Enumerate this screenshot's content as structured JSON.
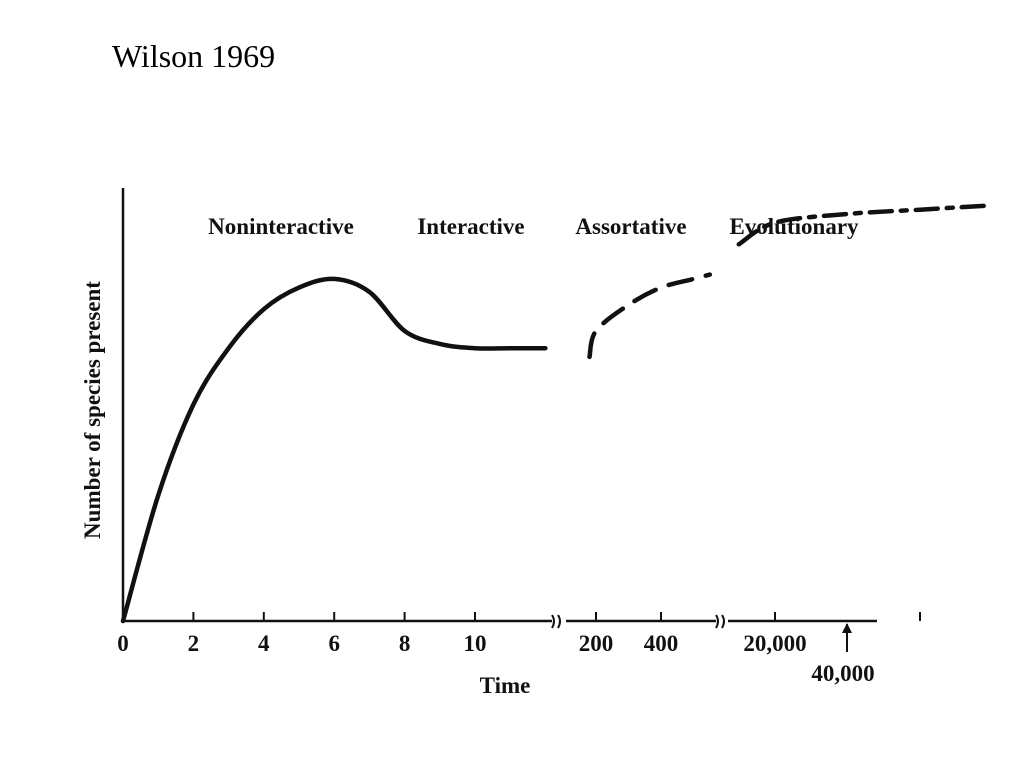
{
  "slide": {
    "title": "Wilson 1969"
  },
  "chart_data": {
    "type": "line",
    "title": "",
    "xlabel": "Time",
    "ylabel": "Number of species present",
    "axis_breaks": true,
    "phases": [
      "Noninteractive",
      "Interactive",
      "Assortative",
      "Evolutionary"
    ],
    "x_ticks": [
      "0",
      "2",
      "4",
      "6",
      "8",
      "10",
      "200",
      "400",
      "20,000"
    ],
    "annotation": {
      "label": "40,000",
      "marks": "arrow"
    },
    "series": [
      {
        "style": "solid",
        "points": [
          [
            0,
            0
          ],
          [
            1,
            0.29
          ],
          [
            2,
            0.5
          ],
          [
            3,
            0.63
          ],
          [
            4,
            0.72
          ],
          [
            5,
            0.77
          ],
          [
            6,
            0.79
          ],
          [
            7,
            0.76
          ],
          [
            8,
            0.67
          ],
          [
            9,
            0.64
          ],
          [
            10,
            0.63
          ],
          [
            11,
            0.63
          ],
          [
            12,
            0.63
          ]
        ]
      },
      {
        "style": "dashed",
        "points": [
          [
            180,
            0.61
          ],
          [
            200,
            0.67
          ],
          [
            300,
            0.73
          ],
          [
            400,
            0.77
          ],
          [
            500,
            0.79
          ],
          [
            550,
            0.8
          ]
        ]
      },
      {
        "style": "dash-dot",
        "points": [
          [
            15000,
            0.87
          ],
          [
            20000,
            0.92
          ],
          [
            30000,
            0.94
          ],
          [
            40000,
            0.95
          ],
          [
            50000,
            0.96
          ]
        ]
      }
    ]
  }
}
